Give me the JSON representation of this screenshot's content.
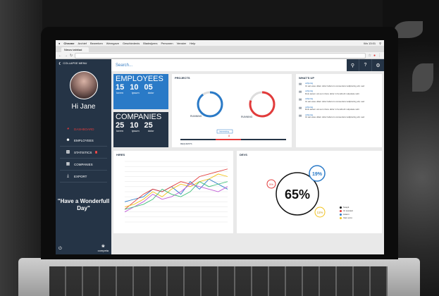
{
  "browser": {
    "menu": [
      "Chrome",
      "Archief",
      "Bewerken",
      "Weergave",
      "Geschiedenis",
      "Bladwijzers",
      "Personen",
      "Venster",
      "Help"
    ],
    "clock": "Wo 13:01",
    "tab_title": "Nieuw tabblad"
  },
  "sidebar": {
    "collapse_label": "COLLAPSE MENU",
    "greeting": "Hi Jane",
    "items": [
      {
        "label": "DASHBOARD",
        "icon": "dashboard-icon"
      },
      {
        "label": "EMPLOYEES",
        "icon": "users-icon"
      },
      {
        "label": "STATISTICS",
        "icon": "chart-icon",
        "badge": "!"
      },
      {
        "label": "COMPANIES",
        "icon": "companies-icon"
      },
      {
        "label": "EXPORT",
        "icon": "download-icon"
      }
    ],
    "quote": "\"Have a Wonderfull Day\"",
    "brand": "competa"
  },
  "search": {
    "placeholder": "Search..."
  },
  "employees": {
    "title": "EMPLOYEES",
    "values": [
      "15",
      "10",
      "05"
    ],
    "labels": [
      "lorem",
      "ipsum",
      "dolor"
    ]
  },
  "companies": {
    "title": "COMPANIES",
    "values": [
      "25",
      "10",
      "25"
    ],
    "labels": [
      "lorem",
      "ipsum",
      "dolor"
    ]
  },
  "projects": {
    "title": "PROJECTS",
    "donuts": [
      {
        "label": "RUNNING",
        "color": "#2a7ac7",
        "value": 90
      },
      {
        "label": "RUNNING",
        "color": "#e23b3b",
        "value": 80
      }
    ],
    "progress_label": "REQUESTS",
    "marker_label": "Interesting",
    "marker_value": "8"
  },
  "whats_up": {
    "title": "WHAT'S UP",
    "items": [
      {
        "link": "sdfjkddg",
        "text": "Ut eat esse ullam dolor laborum consectetur adipiscing elit, sed"
      },
      {
        "link": "sdfjkddg",
        "text": "Duis autem vel eum iriure dolor in hendrerit vulputate velit"
      },
      {
        "link": "sdfjkddg",
        "text": "Ut eat esse ullam dolor laborum consectetur adipiscing elit, sed"
      },
      {
        "link": "sdfjkddg",
        "text": "Duis autem vel eum iriure dolor in hendrerit vulputate velit"
      },
      {
        "link": "sdfjkddg",
        "text": "Ut eat esse ullam dolor laborum consectetur adipiscing elit, sed"
      }
    ]
  },
  "hires": {
    "title": "HIRES"
  },
  "devs": {
    "title": "DEVS",
    "center": "65%",
    "bubbles": [
      "19%",
      "11%",
      "5%"
    ],
    "legend": [
      {
        "label": "Suspit",
        "color": "#111111"
      },
      {
        "label": "Ut suscipit",
        "color": "#e23b3b"
      },
      {
        "label": "Autem",
        "color": "#2a7ac7"
      },
      {
        "label": "Vero eros",
        "color": "#f2c21a"
      }
    ]
  },
  "chart_data": {
    "type": "line",
    "title": "HIRES",
    "x": [
      1,
      2,
      3,
      4,
      5,
      6,
      7,
      8,
      9,
      10,
      11,
      12
    ],
    "series": [
      {
        "color": "#2a7ac7",
        "values": [
          8,
          9,
          10,
          13,
          12,
          14,
          11,
          16,
          13,
          17,
          15,
          13
        ]
      },
      {
        "color": "#e23b3b",
        "values": [
          5,
          8,
          11,
          13,
          12,
          14,
          16,
          15,
          18,
          19,
          20,
          21
        ]
      },
      {
        "color": "#f2c21a",
        "values": [
          6,
          7,
          9,
          12,
          10,
          13,
          15,
          14,
          16,
          17,
          19,
          18
        ]
      },
      {
        "color": "#c05bd6",
        "values": [
          4,
          6,
          8,
          11,
          9,
          10,
          12,
          15,
          14,
          13,
          12,
          14
        ]
      },
      {
        "color": "#3fbf7a",
        "values": [
          5,
          6,
          7,
          9,
          13,
          11,
          10,
          12,
          16,
          14,
          15,
          16
        ]
      }
    ],
    "ylim": [
      0,
      24
    ],
    "grid": true
  }
}
